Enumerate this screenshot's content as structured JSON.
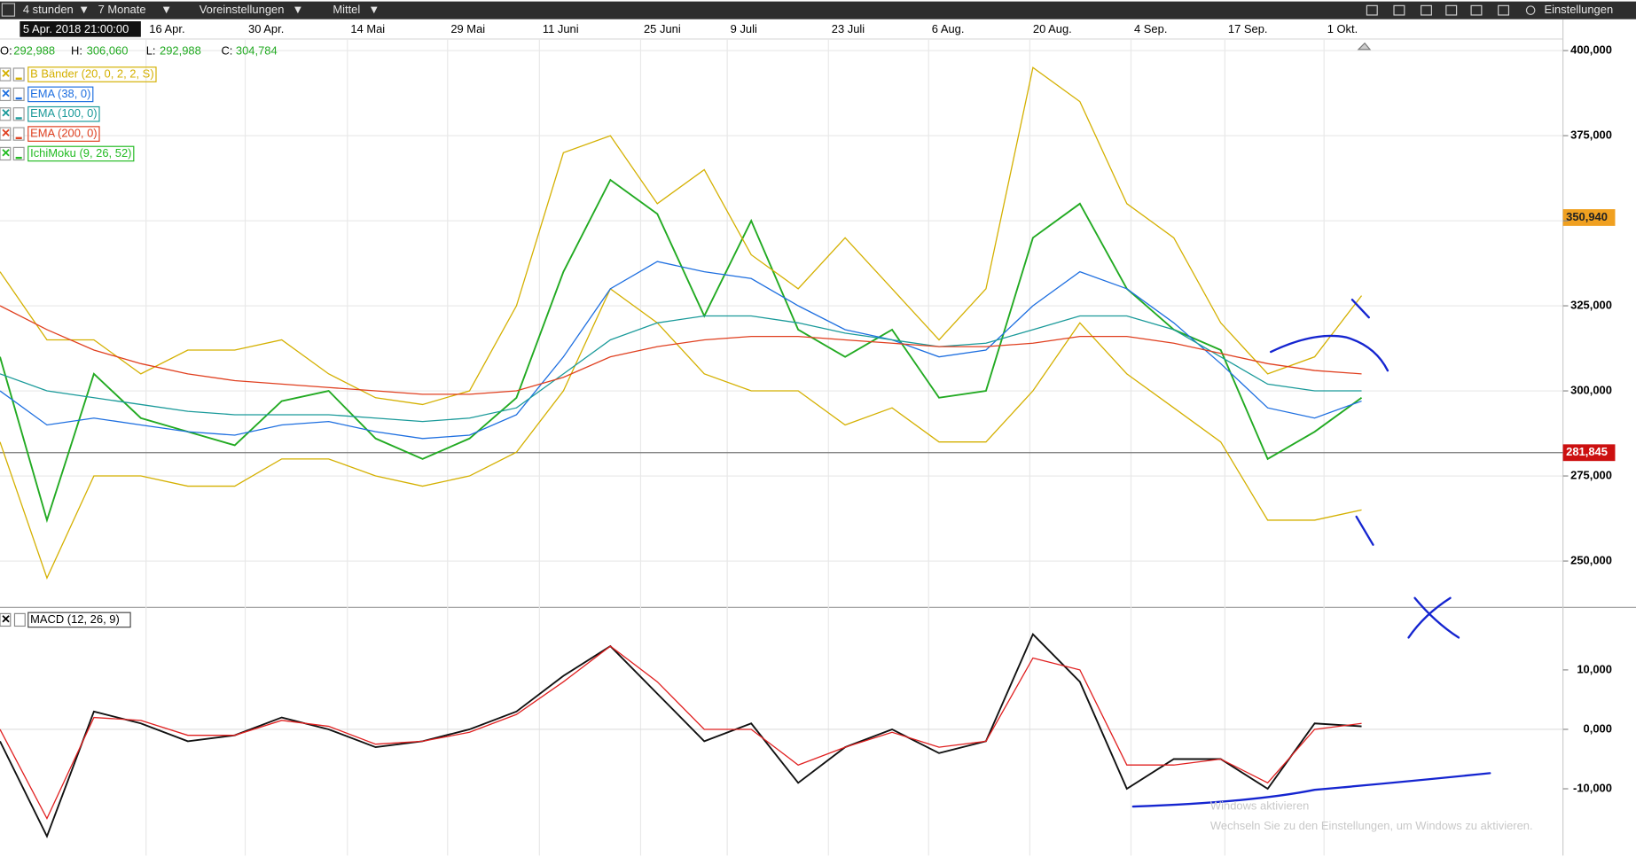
{
  "toolbar": {
    "interval": "4 stunden",
    "range": "7 Monate",
    "presets": "Voreinstellungen",
    "size": "Mittel",
    "settings": "Einstellungen"
  },
  "cursor_date": "5 Apr. 2018 21:00:00",
  "date_labels": [
    "16 Apr.",
    "30 Apr.",
    "14 Mai",
    "29 Mai",
    "11 Juni",
    "25 Juni",
    "9 Juli",
    "23 Juli",
    "6 Aug.",
    "20 Aug.",
    "4 Sep.",
    "17 Sep.",
    "1 Okt."
  ],
  "ohlc": {
    "o_label": "O:",
    "o": "292,988",
    "h_label": "H:",
    "h": "306,060",
    "l_label": "L:",
    "l": "292,988",
    "c_label": "C:",
    "c": "304,784"
  },
  "indicators": [
    {
      "name": "B Bänder (20, 0, 2, 2, S)",
      "color": "#d4b000"
    },
    {
      "name": "EMA (38, 0)",
      "color": "#1e6fe0"
    },
    {
      "name": "EMA (100, 0)",
      "color": "#1a9a9a"
    },
    {
      "name": "EMA (200, 0)",
      "color": "#e04020"
    },
    {
      "name": "IchiMoku (9, 26, 52)",
      "color": "#22bb22"
    }
  ],
  "chart_data": [
    {
      "type": "line",
      "ylim": [
        236700,
        403400
      ],
      "yticks": [
        {
          "value": 250000,
          "label": "250,000"
        },
        {
          "value": 275000,
          "label": "275,000"
        },
        {
          "value": 300000,
          "label": "300,000"
        },
        {
          "value": 325000,
          "label": "325,000"
        },
        {
          "value": 350000,
          "label": "350,000"
        },
        {
          "value": 375000,
          "label": "375,000"
        },
        {
          "value": 400000,
          "label": "400,000"
        }
      ],
      "grid": true,
      "markers": [
        {
          "value": 350940,
          "label": "350,940",
          "color": "#f0a020"
        },
        {
          "value": 281845,
          "label": "281,845",
          "color": "#cc1010"
        }
      ],
      "series": [
        {
          "name": "Kurs",
          "color": "#22aa22",
          "values": [
            310000,
            262000,
            305000,
            292000,
            288000,
            284000,
            297000,
            300000,
            286000,
            280000,
            286000,
            298000,
            335000,
            362000,
            352000,
            322000,
            350000,
            318000,
            310000,
            318000,
            298000,
            300000,
            345000,
            355000,
            330000,
            318000,
            312000,
            280000,
            288000,
            298000
          ]
        },
        {
          "name": "BB oben",
          "color": "#d4b000",
          "values": [
            335000,
            315000,
            315000,
            305000,
            312000,
            312000,
            315000,
            305000,
            298000,
            296000,
            300000,
            325000,
            370000,
            375000,
            355000,
            365000,
            340000,
            330000,
            345000,
            330000,
            315000,
            330000,
            395000,
            385000,
            355000,
            345000,
            320000,
            305000,
            310000,
            328000
          ]
        },
        {
          "name": "BB unten",
          "color": "#d4b000",
          "values": [
            285000,
            245000,
            275000,
            275000,
            272000,
            272000,
            280000,
            280000,
            275000,
            272000,
            275000,
            282000,
            300000,
            330000,
            320000,
            305000,
            300000,
            300000,
            290000,
            295000,
            285000,
            285000,
            300000,
            320000,
            305000,
            295000,
            285000,
            262000,
            262000,
            265000
          ]
        },
        {
          "name": "EMA 38",
          "color": "#1e6fe0",
          "values": [
            300000,
            290000,
            292000,
            290000,
            288000,
            287000,
            290000,
            291000,
            288000,
            286000,
            287000,
            293000,
            310000,
            330000,
            338000,
            335000,
            333000,
            325000,
            318000,
            315000,
            310000,
            312000,
            325000,
            335000,
            330000,
            320000,
            308000,
            295000,
            292000,
            297000
          ]
        },
        {
          "name": "EMA 100",
          "color": "#1a9a9a",
          "values": [
            305000,
            300000,
            298000,
            296000,
            294000,
            293000,
            293000,
            293000,
            292000,
            291000,
            292000,
            295000,
            305000,
            315000,
            320000,
            322000,
            322000,
            320000,
            317000,
            315000,
            313000,
            314000,
            318000,
            322000,
            322000,
            318000,
            310000,
            302000,
            300000,
            300000
          ]
        },
        {
          "name": "EMA 200",
          "color": "#e04020",
          "values": [
            325000,
            318000,
            312000,
            308000,
            305000,
            303000,
            302000,
            301000,
            300000,
            299000,
            299000,
            300000,
            304000,
            310000,
            313000,
            315000,
            316000,
            316000,
            315000,
            314000,
            313000,
            313000,
            314000,
            316000,
            316000,
            314000,
            311000,
            308000,
            306000,
            305000
          ]
        }
      ]
    },
    {
      "type": "line",
      "title": "MACD (12, 26, 9)",
      "ylim": [
        -21230,
        20350
      ],
      "yticks": [
        {
          "value": -10000,
          "label": "-10,000"
        },
        {
          "value": 0,
          "label": "0,000"
        },
        {
          "value": 10000,
          "label": "10,000"
        }
      ],
      "series": [
        {
          "name": "MACD",
          "color": "#111111",
          "values": [
            -2000,
            -18000,
            3000,
            1000,
            -2000,
            -1000,
            2000,
            0,
            -3000,
            -2000,
            0,
            3000,
            9000,
            14000,
            6000,
            -2000,
            1000,
            -9000,
            -3000,
            0,
            -4000,
            -2000,
            16000,
            8000,
            -10000,
            -5000,
            -5000,
            -10000,
            1000,
            500
          ]
        },
        {
          "name": "Signal",
          "color": "#e02020",
          "values": [
            0,
            -15000,
            2000,
            1500,
            -1000,
            -1000,
            1500,
            500,
            -2500,
            -2000,
            -500,
            2500,
            8000,
            14000,
            8000,
            0,
            0,
            -6000,
            -3000,
            -500,
            -3000,
            -2000,
            12000,
            10000,
            -6000,
            -6000,
            -5000,
            -9000,
            0,
            1000
          ]
        }
      ]
    }
  ],
  "watermark": {
    "title": "Windows aktivieren",
    "text": "Wechseln Sie zu den Einstellungen, um Windows zu aktivieren."
  }
}
